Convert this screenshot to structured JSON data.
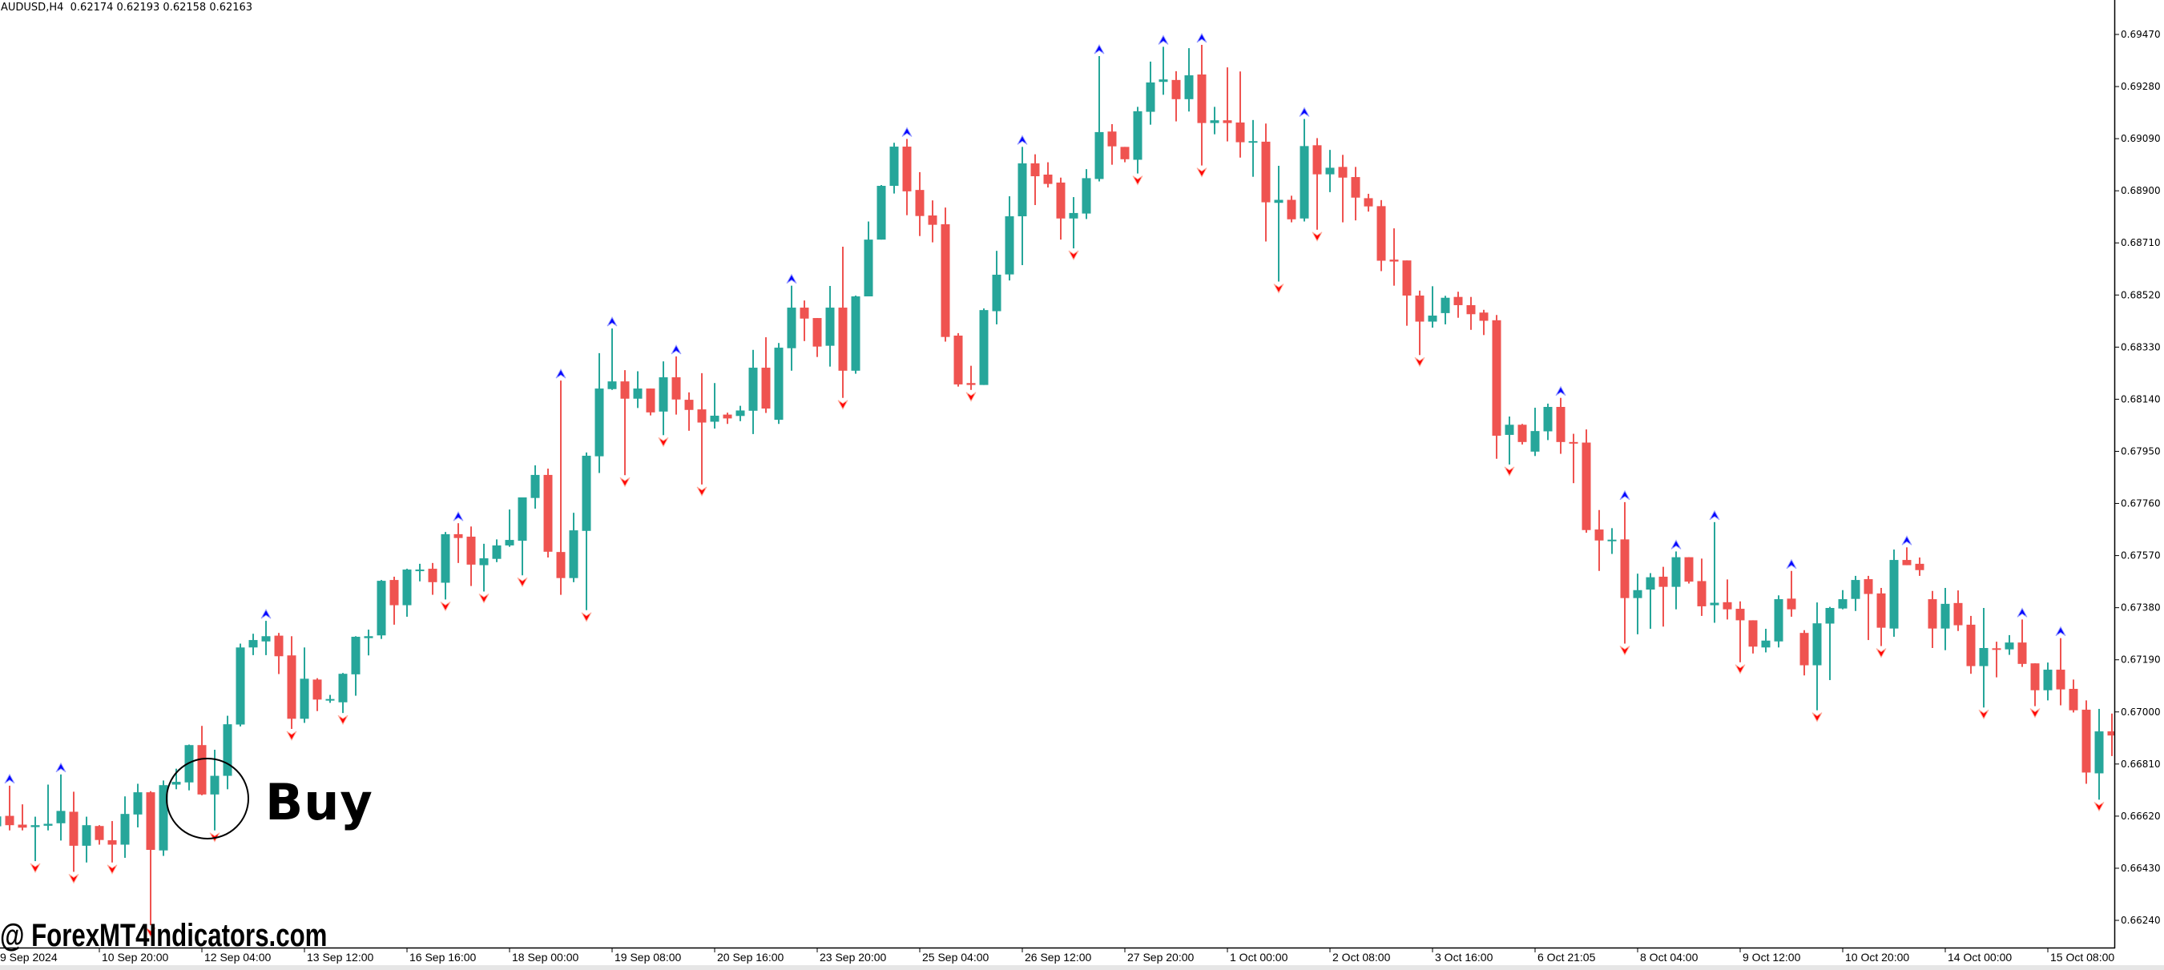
{
  "header": {
    "symbol_timeframe": "AUDUSD,H4",
    "ohlc": "0.62174 0.62193 0.62158 0.62163"
  },
  "annotation": {
    "label": "Buy"
  },
  "watermark": {
    "text": "@ ForexMT4Indicators.com"
  },
  "colors": {
    "bull": "#26a69a",
    "bear": "#ef5350",
    "signal_up": "#0000ff",
    "signal_down": "#ff0000",
    "axis": "#000000",
    "background": "#ffffff"
  },
  "chart_data": {
    "type": "candlestick",
    "title": "AUDUSD,H4",
    "grid": false,
    "price_axis": {
      "position": "right",
      "range": [
        0.6624,
        0.6947
      ],
      "ticks": [
        "0.69470",
        "0.69280",
        "0.69090",
        "0.68900",
        "0.68710",
        "0.68520",
        "0.68330",
        "0.68140",
        "0.67950",
        "0.67760",
        "0.67570",
        "0.67380",
        "0.67190",
        "0.67000",
        "0.66810",
        "0.66620",
        "0.66430",
        "0.66240"
      ]
    },
    "time_axis": {
      "bars_per_label": 8,
      "labels": [
        "9 Sep 2024",
        "10 Sep 20:00",
        "12 Sep 04:00",
        "13 Sep 12:00",
        "16 Sep 16:00",
        "18 Sep 00:00",
        "19 Sep 08:00",
        "20 Sep 16:00",
        "23 Sep 20:00",
        "25 Sep 04:00",
        "26 Sep 12:00",
        "27 Sep 20:00",
        "1 Oct 00:00",
        "2 Oct 08:00",
        "3 Oct 16:00",
        "6 Oct 21:05",
        "8 Oct 04:00",
        "9 Oct 12:00",
        "10 Oct 20:00",
        "14 Oct 00:00",
        "15 Oct 08:00"
      ]
    },
    "candle_fields": [
      "open",
      "high",
      "low",
      "close"
    ],
    "candles": [
      [
        0.66583,
        0.66625,
        0.6656,
        0.66619
      ],
      [
        0.66621,
        0.66731,
        0.66568,
        0.66587
      ],
      [
        0.66589,
        0.66663,
        0.66568,
        0.66578
      ],
      [
        0.6658,
        0.66618,
        0.66456,
        0.66587
      ],
      [
        0.66585,
        0.66735,
        0.66568,
        0.66592
      ],
      [
        0.66594,
        0.66772,
        0.66531,
        0.66639
      ],
      [
        0.66636,
        0.66709,
        0.66417,
        0.66512
      ],
      [
        0.66512,
        0.66618,
        0.66451,
        0.66587
      ],
      [
        0.66584,
        0.66587,
        0.66516,
        0.66533
      ],
      [
        0.66532,
        0.66602,
        0.66451,
        0.66516
      ],
      [
        0.66516,
        0.66692,
        0.66468,
        0.66628
      ],
      [
        0.66626,
        0.66738,
        0.66579,
        0.66707
      ],
      [
        0.66707,
        0.66711,
        0.66222,
        0.66497
      ],
      [
        0.66495,
        0.6675,
        0.66475,
        0.66733
      ],
      [
        0.66735,
        0.66793,
        0.66718,
        0.66745
      ],
      [
        0.66743,
        0.66881,
        0.66714,
        0.66879
      ],
      [
        0.66879,
        0.66949,
        0.66696,
        0.66699
      ],
      [
        0.66699,
        0.66862,
        0.66568,
        0.66767
      ],
      [
        0.66767,
        0.66986,
        0.66718,
        0.66955
      ],
      [
        0.66954,
        0.67249,
        0.66947,
        0.67235
      ],
      [
        0.67235,
        0.67285,
        0.67207,
        0.67262
      ],
      [
        0.67257,
        0.67332,
        0.67207,
        0.67276
      ],
      [
        0.67278,
        0.67288,
        0.67138,
        0.67203
      ],
      [
        0.67206,
        0.67276,
        0.66938,
        0.66975
      ],
      [
        0.66975,
        0.67235,
        0.6696,
        0.67121
      ],
      [
        0.67118,
        0.67123,
        0.67003,
        0.67045
      ],
      [
        0.67042,
        0.67062,
        0.67033,
        0.67047
      ],
      [
        0.67035,
        0.67142,
        0.66996,
        0.67139
      ],
      [
        0.67137,
        0.67276,
        0.67059,
        0.67274
      ],
      [
        0.67269,
        0.673,
        0.67206,
        0.67276
      ],
      [
        0.67279,
        0.67481,
        0.67266,
        0.67478
      ],
      [
        0.67481,
        0.67493,
        0.67318,
        0.67389
      ],
      [
        0.67389,
        0.67522,
        0.67347,
        0.67519
      ],
      [
        0.67516,
        0.6754,
        0.67476,
        0.67519
      ],
      [
        0.67522,
        0.67543,
        0.67427,
        0.67473
      ],
      [
        0.67471,
        0.67656,
        0.6741,
        0.67648
      ],
      [
        0.67648,
        0.67688,
        0.67543,
        0.67634
      ],
      [
        0.67639,
        0.67676,
        0.67459,
        0.67537
      ],
      [
        0.67535,
        0.67613,
        0.67439,
        0.6756
      ],
      [
        0.67558,
        0.67629,
        0.67546,
        0.67607
      ],
      [
        0.67607,
        0.67738,
        0.67602,
        0.67627
      ],
      [
        0.67624,
        0.67782,
        0.67498,
        0.67782
      ],
      [
        0.6778,
        0.67899,
        0.67741,
        0.67864
      ],
      [
        0.67864,
        0.67887,
        0.67563,
        0.67584
      ],
      [
        0.67583,
        0.68208,
        0.67427,
        0.67488
      ],
      [
        0.67488,
        0.67726,
        0.67473,
        0.67662
      ],
      [
        0.6766,
        0.67946,
        0.67371,
        0.67934
      ],
      [
        0.67932,
        0.68308,
        0.67871,
        0.68179
      ],
      [
        0.68177,
        0.68398,
        0.68174,
        0.68205
      ],
      [
        0.68205,
        0.68246,
        0.67863,
        0.68142
      ],
      [
        0.68142,
        0.68242,
        0.68108,
        0.68179
      ],
      [
        0.68179,
        0.68179,
        0.68081,
        0.68092
      ],
      [
        0.68095,
        0.68278,
        0.68009,
        0.6822
      ],
      [
        0.6822,
        0.68296,
        0.68084,
        0.68139
      ],
      [
        0.68138,
        0.68165,
        0.68025,
        0.68101
      ],
      [
        0.68103,
        0.68235,
        0.67829,
        0.68055
      ],
      [
        0.68058,
        0.68199,
        0.68033,
        0.6808
      ],
      [
        0.68084,
        0.68091,
        0.6805,
        0.6807
      ],
      [
        0.68079,
        0.68116,
        0.6806,
        0.68099
      ],
      [
        0.68098,
        0.6832,
        0.68013,
        0.68255
      ],
      [
        0.68255,
        0.68366,
        0.6809,
        0.68106
      ],
      [
        0.68065,
        0.68345,
        0.6805,
        0.68328
      ],
      [
        0.68326,
        0.68554,
        0.68244,
        0.68474
      ],
      [
        0.68474,
        0.685,
        0.68352,
        0.68434
      ],
      [
        0.68436,
        0.68436,
        0.68294,
        0.68332
      ],
      [
        0.68335,
        0.68553,
        0.68259,
        0.68474
      ],
      [
        0.68474,
        0.68696,
        0.68145,
        0.68244
      ],
      [
        0.68244,
        0.68518,
        0.68233,
        0.68515
      ],
      [
        0.68515,
        0.68788,
        0.68515,
        0.68722
      ],
      [
        0.68722,
        0.68921,
        0.68722,
        0.68918
      ],
      [
        0.68918,
        0.69075,
        0.6889,
        0.69061
      ],
      [
        0.69061,
        0.69089,
        0.68811,
        0.68898
      ],
      [
        0.68903,
        0.68968,
        0.68735,
        0.68808
      ],
      [
        0.6881,
        0.68865,
        0.68712,
        0.68776
      ],
      [
        0.68778,
        0.68839,
        0.6835,
        0.68367
      ],
      [
        0.68372,
        0.68381,
        0.68186,
        0.68194
      ],
      [
        0.68199,
        0.68262,
        0.68174,
        0.68192
      ],
      [
        0.68192,
        0.68471,
        0.68192,
        0.68465
      ],
      [
        0.68461,
        0.68681,
        0.68413,
        0.68594
      ],
      [
        0.68595,
        0.6888,
        0.68573,
        0.68807
      ],
      [
        0.68807,
        0.6906,
        0.68629,
        0.69
      ],
      [
        0.69,
        0.69033,
        0.68848,
        0.68953
      ],
      [
        0.68959,
        0.69004,
        0.68912,
        0.68925
      ],
      [
        0.6893,
        0.68948,
        0.68722,
        0.68799
      ],
      [
        0.68799,
        0.68877,
        0.6869,
        0.68819
      ],
      [
        0.68817,
        0.68979,
        0.68797,
        0.68946
      ],
      [
        0.68943,
        0.69391,
        0.68934,
        0.69114
      ],
      [
        0.69116,
        0.69143,
        0.68995,
        0.69062
      ],
      [
        0.6906,
        0.6906,
        0.69004,
        0.69015
      ],
      [
        0.69013,
        0.69206,
        0.68963,
        0.6919
      ],
      [
        0.69188,
        0.69371,
        0.69141,
        0.69295
      ],
      [
        0.69297,
        0.69425,
        0.6925,
        0.69306
      ],
      [
        0.69304,
        0.69336,
        0.69153,
        0.69234
      ],
      [
        0.69234,
        0.6942,
        0.69189,
        0.69321
      ],
      [
        0.69324,
        0.69432,
        0.68992,
        0.69147
      ],
      [
        0.69147,
        0.69206,
        0.69106,
        0.69157
      ],
      [
        0.69157,
        0.6935,
        0.6908,
        0.69147
      ],
      [
        0.69149,
        0.69335,
        0.69021,
        0.69077
      ],
      [
        0.69079,
        0.69158,
        0.68951,
        0.69081
      ],
      [
        0.69079,
        0.69145,
        0.68715,
        0.68858
      ],
      [
        0.68856,
        0.68991,
        0.68569,
        0.68867
      ],
      [
        0.68867,
        0.68882,
        0.68785,
        0.68796
      ],
      [
        0.68799,
        0.69162,
        0.68788,
        0.69063
      ],
      [
        0.69066,
        0.69092,
        0.68758,
        0.6896
      ],
      [
        0.6896,
        0.69049,
        0.68895,
        0.68984
      ],
      [
        0.68987,
        0.69031,
        0.68785,
        0.68948
      ],
      [
        0.6895,
        0.68987,
        0.68792,
        0.68875
      ],
      [
        0.68873,
        0.68889,
        0.68824,
        0.68843
      ],
      [
        0.68844,
        0.68866,
        0.68607,
        0.68645
      ],
      [
        0.68649,
        0.68763,
        0.68554,
        0.68642
      ],
      [
        0.68646,
        0.68646,
        0.68408,
        0.68518
      ],
      [
        0.68518,
        0.68536,
        0.68301,
        0.68423
      ],
      [
        0.68423,
        0.68552,
        0.68401,
        0.68445
      ],
      [
        0.68454,
        0.68517,
        0.68413,
        0.6851
      ],
      [
        0.68513,
        0.68532,
        0.68437,
        0.68483
      ],
      [
        0.68483,
        0.68513,
        0.68393,
        0.6845
      ],
      [
        0.68456,
        0.68466,
        0.68374,
        0.68426
      ],
      [
        0.68428,
        0.68447,
        0.67923,
        0.68007
      ],
      [
        0.6801,
        0.68077,
        0.67902,
        0.68047
      ],
      [
        0.68047,
        0.6805,
        0.67975,
        0.67984
      ],
      [
        0.67949,
        0.68109,
        0.67933,
        0.68024
      ],
      [
        0.68023,
        0.68124,
        0.67991,
        0.68112
      ],
      [
        0.68112,
        0.68145,
        0.67941,
        0.67984
      ],
      [
        0.67984,
        0.68014,
        0.67834,
        0.67982
      ],
      [
        0.67982,
        0.6803,
        0.67653,
        0.67663
      ],
      [
        0.67665,
        0.67736,
        0.67514,
        0.67625
      ],
      [
        0.67627,
        0.6767,
        0.67576,
        0.67628
      ],
      [
        0.67629,
        0.67765,
        0.67249,
        0.67415
      ],
      [
        0.67415,
        0.67504,
        0.67283,
        0.67444
      ],
      [
        0.67446,
        0.67506,
        0.67303,
        0.67491
      ],
      [
        0.67493,
        0.67529,
        0.67311,
        0.67456
      ],
      [
        0.67456,
        0.67585,
        0.67374,
        0.67564
      ],
      [
        0.67564,
        0.67564,
        0.67468,
        0.67475
      ],
      [
        0.67477,
        0.67559,
        0.6735,
        0.67385
      ],
      [
        0.67389,
        0.67692,
        0.67325,
        0.67398
      ],
      [
        0.674,
        0.67483,
        0.67337,
        0.67374
      ],
      [
        0.67376,
        0.67403,
        0.67181,
        0.67334
      ],
      [
        0.67334,
        0.67334,
        0.67213,
        0.67238
      ],
      [
        0.67235,
        0.67303,
        0.67217,
        0.6726
      ],
      [
        0.67257,
        0.67425,
        0.67235,
        0.67411
      ],
      [
        0.67413,
        0.67514,
        0.67347,
        0.67374
      ],
      [
        0.67288,
        0.67298,
        0.67133,
        0.6717
      ],
      [
        0.6717,
        0.67399,
        0.67006,
        0.67323
      ],
      [
        0.67322,
        0.67383,
        0.67116,
        0.67379
      ],
      [
        0.67377,
        0.67444,
        0.67374,
        0.67411
      ],
      [
        0.67412,
        0.67496,
        0.67368,
        0.67481
      ],
      [
        0.67484,
        0.67496,
        0.67262,
        0.6743
      ],
      [
        0.67432,
        0.67452,
        0.6724,
        0.67307
      ],
      [
        0.67304,
        0.67592,
        0.67274,
        0.67554
      ],
      [
        0.67554,
        0.676,
        0.67535,
        0.67535
      ],
      [
        0.6754,
        0.67563,
        0.67496,
        0.67517
      ],
      [
        0.67411,
        0.67441,
        0.67233,
        0.67304
      ],
      [
        0.67304,
        0.67452,
        0.67225,
        0.67394
      ],
      [
        0.67397,
        0.67443,
        0.67295,
        0.67316
      ],
      [
        0.67318,
        0.6735,
        0.67139,
        0.67167
      ],
      [
        0.67167,
        0.67379,
        0.67016,
        0.67233
      ],
      [
        0.67232,
        0.67256,
        0.67126,
        0.67228
      ],
      [
        0.67228,
        0.6728,
        0.67208,
        0.67253
      ],
      [
        0.67253,
        0.67337,
        0.67164,
        0.67175
      ],
      [
        0.67177,
        0.67177,
        0.67021,
        0.67079
      ],
      [
        0.67079,
        0.6718,
        0.67042,
        0.67154
      ],
      [
        0.67154,
        0.67269,
        0.67024,
        0.67082
      ],
      [
        0.67084,
        0.67118,
        0.66998,
        0.67006
      ],
      [
        0.67008,
        0.67042,
        0.66738,
        0.66779
      ],
      [
        0.66776,
        0.67011,
        0.6668,
        0.66929
      ],
      [
        0.66929,
        0.66994,
        0.66839,
        0.66914
      ]
    ],
    "signals": {
      "up_arrow_bars": [
        1,
        5,
        21,
        36,
        44,
        48,
        53,
        62,
        71,
        80,
        86,
        91,
        94,
        102,
        122,
        127,
        131,
        134,
        140,
        149,
        158,
        161
      ],
      "down_arrow_bars": [
        3,
        6,
        9,
        12,
        17,
        23,
        27,
        35,
        38,
        41,
        46,
        49,
        52,
        55,
        66,
        76,
        84,
        89,
        94,
        100,
        103,
        111,
        118,
        127,
        136,
        142,
        147,
        155,
        159,
        164
      ]
    },
    "annotations": [
      {
        "label": "Buy",
        "bar": 17
      }
    ]
  }
}
